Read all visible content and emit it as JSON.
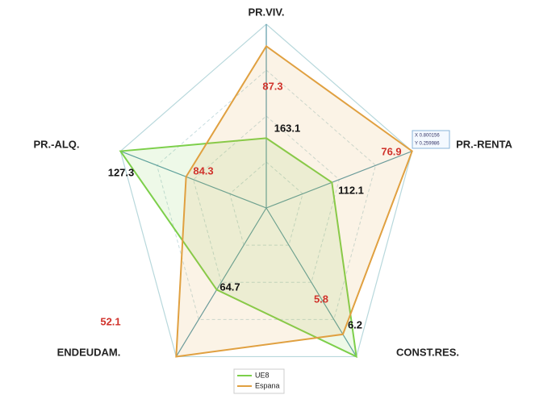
{
  "chart_data": {
    "type": "radar",
    "categories": [
      "PR.VIV.",
      "PR.-RENTA",
      "CONST.RES.",
      "ENDEUDAM.",
      "PR.-ALQ."
    ],
    "rlim": [
      0,
      1
    ],
    "rticks": [
      0.25,
      0.5,
      0.75,
      1
    ],
    "grid": true,
    "legend": "bottom",
    "series": [
      {
        "name": "UE8",
        "color": "#7ccf4a",
        "label_color": "#111111",
        "values": [
          0.38,
          0.45,
          1.0,
          0.55,
          1.0
        ],
        "point_labels": [
          "163.1",
          "112.1",
          "6.2",
          "64.7",
          "127.3"
        ]
      },
      {
        "name": "Espana",
        "color": "#e0a040",
        "label_color": "#d0322b",
        "values": [
          0.88,
          1.0,
          0.85,
          1.0,
          0.55
        ],
        "point_labels": [
          "87.3",
          "76.9",
          "5.8",
          "52.1",
          "84.3"
        ]
      }
    ],
    "tooltip": [
      "X 0.800156",
      "Y 0.259986"
    ]
  }
}
